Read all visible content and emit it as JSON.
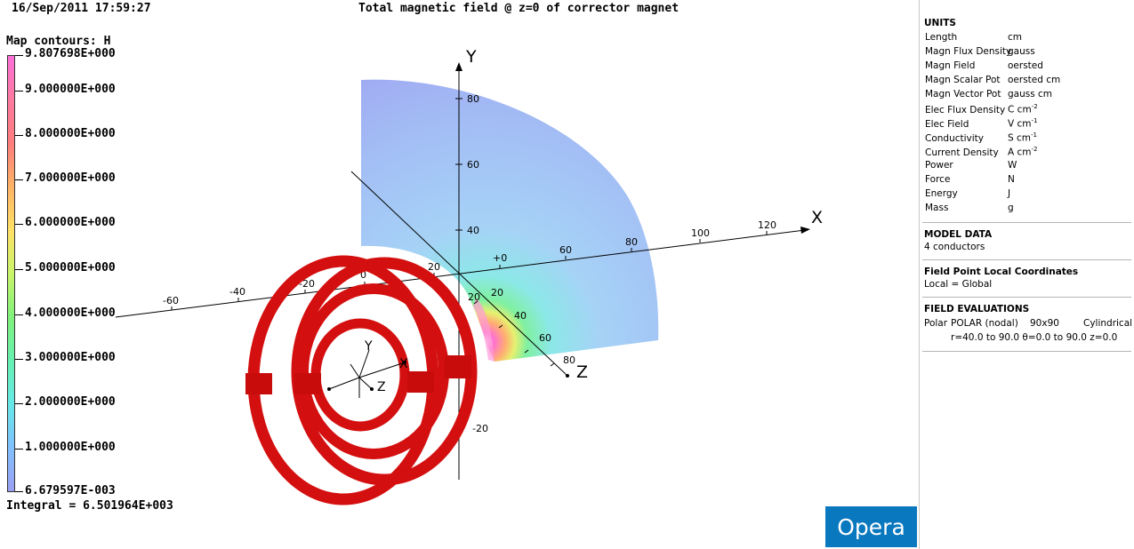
{
  "header": {
    "timestamp": "16/Sep/2011 17:59:27",
    "title": "Total magnetic field @ z=0 of corrector magnet"
  },
  "legend": {
    "title": "Map contours: H",
    "labels": [
      "9.807698E+000",
      "9.000000E+000",
      "8.000000E+000",
      "7.000000E+000",
      "6.000000E+000",
      "5.000000E+000",
      "4.000000E+000",
      "3.000000E+000",
      "2.000000E+000",
      "1.000000E+000",
      "6.679597E-003"
    ],
    "integral": "Integral = 6.501964E+003",
    "colors": [
      "#ff6fd9",
      "#ff7aa0",
      "#ff7d7d",
      "#ffb366",
      "#ffe066",
      "#c9f56a",
      "#80f27a",
      "#66f0b0",
      "#66e8e8",
      "#80c0ff",
      "#9a9ff2"
    ]
  },
  "axes": {
    "x_name": "X",
    "y_name": "Y",
    "z_name": "Z",
    "x_ticks": [
      "-60",
      "-40",
      "-20",
      "0",
      "20",
      "+0",
      "60",
      "80",
      "100",
      "120"
    ],
    "y_ticks": [
      "80",
      "60",
      "40",
      "-20"
    ],
    "z_ticks": [
      "20",
      "40",
      "60",
      "80"
    ]
  },
  "small_axes": {
    "x": "X",
    "y": "Y",
    "z": "Z"
  },
  "panel": {
    "units_title": "UNITS",
    "units": [
      {
        "k": "Length",
        "v": "cm"
      },
      {
        "k": "Magn Flux Density",
        "v": "gauss"
      },
      {
        "k": "Magn Field",
        "v": "oersted"
      },
      {
        "k": "Magn Scalar Pot",
        "v": "oersted cm"
      },
      {
        "k": "Magn Vector Pot",
        "v": "gauss cm"
      },
      {
        "k": "Elec Flux Density",
        "v": "C cm"
      },
      {
        "k": "Elec Field",
        "v": "V cm"
      },
      {
        "k": "Conductivity",
        "v": "S cm"
      },
      {
        "k": "Current Density",
        "v": "A cm"
      },
      {
        "k": "Power",
        "v": "W"
      },
      {
        "k": "Force",
        "v": "N"
      },
      {
        "k": "Energy",
        "v": "J"
      },
      {
        "k": "Mass",
        "v": "g"
      }
    ],
    "model_title": "MODEL DATA",
    "model_line": "4 conductors",
    "fp_title": "Field Point Local Coordinates",
    "fp_line": "Local = Global",
    "fe_title": "FIELD EVALUATIONS",
    "fe_type": "Polar",
    "fe_mode": "POLAR (nodal)",
    "fe_grid": "90x90",
    "fe_coord": "Cylindrical",
    "fe_range": "r=40.0 to 90.0  θ=0.0 to 90.0  z=0.0"
  },
  "logo": "Opera"
}
